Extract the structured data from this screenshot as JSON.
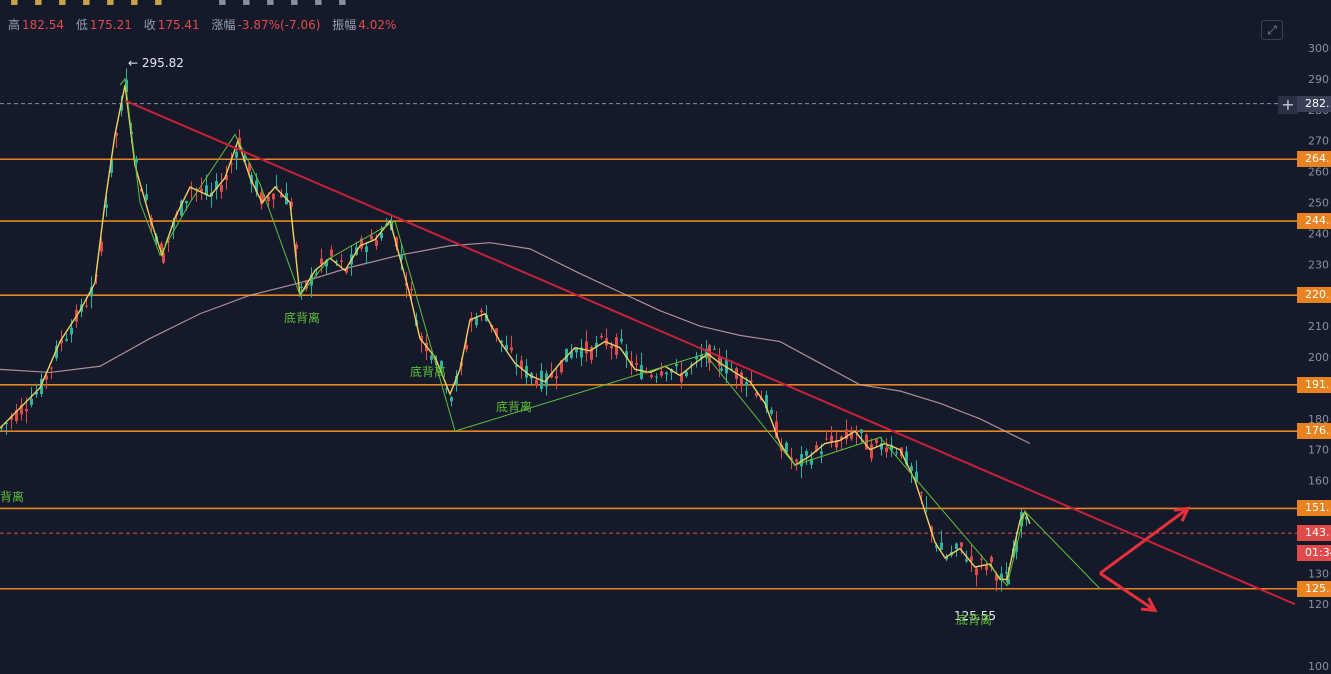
{
  "toolbar": {
    "icons": [
      "chart-type-icon",
      "draw-icon",
      "indicator-icon",
      "compare-icon",
      "undo-icon",
      "redo-icon",
      "bookmark-icon",
      "settings-icon",
      "fullscreen-icon",
      "snapshot-icon",
      "layout-icon",
      "more-icon",
      "save-icon"
    ]
  },
  "infobar": {
    "high_label": "高",
    "high_value": "182.54",
    "low_label": "低",
    "low_value": "175.21",
    "close_label": "收",
    "close_value": "175.41",
    "change_label": "涨幅",
    "change_value": "-3.87%(-7.06)",
    "amplitude_label": "振幅",
    "amplitude_value": "4.02%"
  },
  "colors": {
    "background": "#151a2b",
    "up": "#2bb3a0",
    "down": "#e04a4a",
    "support": "#e8831f",
    "trendline": "#c8213a",
    "ma_fast": "#f0d060",
    "ma_slow": "#d8a9b0",
    "wave": "#5fbf3a",
    "arrow": "#e8303a"
  },
  "chart_data": {
    "type": "line",
    "y_axis": {
      "range": [
        100,
        305
      ],
      "ticks": [
        "300",
        "290",
        "280",
        "270",
        "260",
        "250",
        "240",
        "230",
        "220",
        "210",
        "200",
        "190",
        "180",
        "170",
        "160",
        "150",
        "130",
        "120",
        "100"
      ]
    },
    "levels": [
      {
        "value": 282,
        "label": "282.",
        "style": "crosshair"
      },
      {
        "value": 264,
        "label": "264.",
        "style": "support"
      },
      {
        "value": 244,
        "label": "244.",
        "style": "support"
      },
      {
        "value": 220,
        "label": "220.",
        "style": "support"
      },
      {
        "value": 191,
        "label": "191.",
        "style": "support"
      },
      {
        "value": 176,
        "label": "176.",
        "style": "support"
      },
      {
        "value": 151,
        "label": "151.",
        "style": "support"
      },
      {
        "value": 125,
        "label": "125.",
        "style": "support"
      }
    ],
    "current": {
      "value": 143,
      "label": "143.",
      "countdown": "01:34"
    },
    "annotations": {
      "high_marker": "← 295.82",
      "low_marker": "125.55",
      "divergence_label": "底背离",
      "divergence_left": "背离"
    },
    "price_path": [
      [
        0,
        177
      ],
      [
        40,
        190
      ],
      [
        60,
        205
      ],
      [
        80,
        215
      ],
      [
        95,
        224
      ],
      [
        105,
        250
      ],
      [
        115,
        272
      ],
      [
        125,
        288
      ],
      [
        135,
        262
      ],
      [
        150,
        245
      ],
      [
        162,
        233
      ],
      [
        175,
        245
      ],
      [
        190,
        255
      ],
      [
        210,
        252
      ],
      [
        225,
        258
      ],
      [
        238,
        270
      ],
      [
        250,
        258
      ],
      [
        262,
        250
      ],
      [
        275,
        255
      ],
      [
        290,
        250
      ],
      [
        300,
        220
      ],
      [
        315,
        228
      ],
      [
        330,
        232
      ],
      [
        345,
        228
      ],
      [
        360,
        236
      ],
      [
        375,
        238
      ],
      [
        390,
        244
      ],
      [
        400,
        232
      ],
      [
        410,
        220
      ],
      [
        420,
        206
      ],
      [
        435,
        200
      ],
      [
        450,
        188
      ],
      [
        460,
        196
      ],
      [
        470,
        212
      ],
      [
        485,
        214
      ],
      [
        500,
        205
      ],
      [
        515,
        198
      ],
      [
        530,
        194
      ],
      [
        545,
        192
      ],
      [
        560,
        198
      ],
      [
        575,
        203
      ],
      [
        590,
        202
      ],
      [
        605,
        205
      ],
      [
        620,
        203
      ],
      [
        635,
        196
      ],
      [
        650,
        195
      ],
      [
        665,
        197
      ],
      [
        680,
        194
      ],
      [
        695,
        198
      ],
      [
        708,
        201
      ],
      [
        720,
        198
      ],
      [
        735,
        195
      ],
      [
        750,
        192
      ],
      [
        765,
        185
      ],
      [
        780,
        172
      ],
      [
        795,
        165
      ],
      [
        810,
        168
      ],
      [
        825,
        172
      ],
      [
        840,
        173
      ],
      [
        855,
        176
      ],
      [
        870,
        170
      ],
      [
        885,
        172
      ],
      [
        900,
        170
      ],
      [
        915,
        160
      ],
      [
        925,
        150
      ],
      [
        935,
        140
      ],
      [
        945,
        135
      ],
      [
        960,
        138
      ],
      [
        975,
        132
      ],
      [
        990,
        133
      ],
      [
        1000,
        128
      ],
      [
        1007,
        128
      ],
      [
        1015,
        140
      ],
      [
        1020,
        147
      ],
      [
        1025,
        150
      ],
      [
        1030,
        146
      ]
    ],
    "slow_ma_path": [
      [
        0,
        196
      ],
      [
        50,
        195
      ],
      [
        100,
        197
      ],
      [
        150,
        206
      ],
      [
        200,
        214
      ],
      [
        250,
        220
      ],
      [
        300,
        224
      ],
      [
        350,
        229
      ],
      [
        400,
        233
      ],
      [
        450,
        236
      ],
      [
        490,
        237
      ],
      [
        530,
        235
      ],
      [
        580,
        227
      ],
      [
        620,
        221
      ],
      [
        660,
        215
      ],
      [
        700,
        210
      ],
      [
        740,
        207
      ],
      [
        780,
        205
      ],
      [
        820,
        198
      ],
      [
        860,
        191
      ],
      [
        900,
        189
      ],
      [
        940,
        185
      ],
      [
        980,
        180
      ],
      [
        1030,
        172
      ]
    ],
    "wave_path": [
      [
        120,
        288
      ],
      [
        125,
        290
      ],
      [
        140,
        250
      ],
      [
        160,
        233
      ],
      [
        190,
        250
      ],
      [
        235,
        272
      ],
      [
        260,
        256
      ],
      [
        300,
        220
      ],
      [
        330,
        232
      ],
      [
        395,
        244
      ],
      [
        455,
        176
      ],
      [
        705,
        201
      ],
      [
        795,
        165
      ],
      [
        880,
        174
      ],
      [
        1007,
        126
      ],
      [
        1025,
        150
      ],
      [
        1100,
        125
      ]
    ],
    "trendline": {
      "from": [
        125,
        283
      ],
      "to": [
        1295,
        120
      ]
    },
    "arrows": [
      {
        "from": [
          1100,
          130
        ],
        "to": [
          1188,
          151
        ],
        "direction": "up"
      },
      {
        "from": [
          1100,
          130
        ],
        "to": [
          1155,
          118
        ],
        "direction": "down"
      }
    ]
  }
}
